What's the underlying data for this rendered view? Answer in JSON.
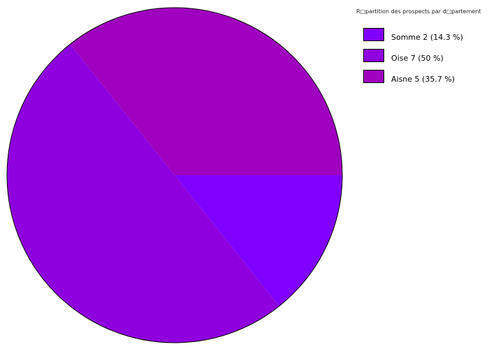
{
  "chart_data": {
    "type": "pie",
    "title": "R□partition des prospects par d□partement",
    "start_angle": "east, clockwise",
    "series": [
      {
        "label": "Somme 2 (14.3 %)",
        "value": 2,
        "color": "#7f00ff"
      },
      {
        "label": "Oise 7 (50 %)",
        "value": 7,
        "color": "#8f00df"
      },
      {
        "label": "Aisne 5 (35.7 %)",
        "value": 5,
        "color": "#9f00bf"
      }
    ],
    "legend_position": "top-right"
  }
}
